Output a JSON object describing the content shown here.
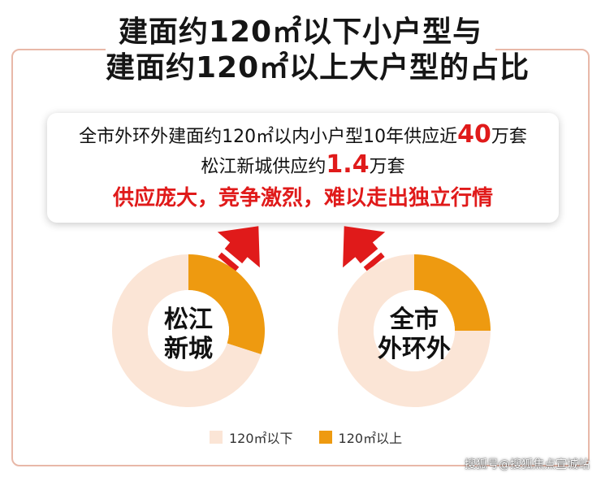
{
  "title": {
    "line1": "建面约120㎡以下小户型与",
    "line2": "建面约120㎡以上大户型的占比"
  },
  "info": {
    "line1_pre": "全市外环外建面约120㎡以内小户型10年供应近",
    "line1_num": "40",
    "line1_post": "万套",
    "line2_pre": "松江新城供应约",
    "line2_num": "1.4",
    "line2_post": "万套",
    "line3": "供应庞大，竞争激烈，难以走出独立行情"
  },
  "colors": {
    "small": "#fbe5d6",
    "large": "#ee9a10",
    "arrow": "#e01a1a",
    "frame": "#e8b8a8"
  },
  "chart_data": [
    {
      "type": "pie",
      "center_label": [
        "松江",
        "新城"
      ],
      "categories": [
        "120㎡以下",
        "120㎡以上"
      ],
      "values": [
        70,
        30
      ]
    },
    {
      "type": "pie",
      "center_label": [
        "全市",
        "外环外"
      ],
      "categories": [
        "120㎡以下",
        "120㎡以上"
      ],
      "values": [
        75,
        25
      ]
    }
  ],
  "legend": [
    {
      "label": "120㎡以下"
    },
    {
      "label": "120㎡以上"
    }
  ],
  "watermark": "搜狐号@搜狐焦点宣城站"
}
